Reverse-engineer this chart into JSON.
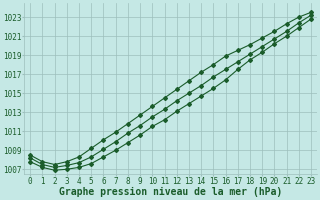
{
  "title": "Graphe pression niveau de la mer (hPa)",
  "background_color": "#c5e8e5",
  "grid_color": "#9dbfbc",
  "line_color": "#1a5c2a",
  "x_labels": [
    "0",
    "1",
    "2",
    "3",
    "4",
    "5",
    "6",
    "7",
    "8",
    "9",
    "10",
    "11",
    "12",
    "13",
    "14",
    "15",
    "16",
    "17",
    "18",
    "19",
    "20",
    "21",
    "22",
    "23"
  ],
  "x_values": [
    0,
    1,
    2,
    3,
    4,
    5,
    6,
    7,
    8,
    9,
    10,
    11,
    12,
    13,
    14,
    15,
    16,
    17,
    18,
    19,
    20,
    21,
    22,
    23
  ],
  "y_main": [
    1008.2,
    1007.5,
    1007.2,
    1007.4,
    1007.7,
    1008.3,
    1009.1,
    1009.9,
    1010.8,
    1011.6,
    1012.5,
    1013.3,
    1014.2,
    1015.0,
    1015.8,
    1016.7,
    1017.5,
    1018.3,
    1019.1,
    1019.9,
    1020.7,
    1021.5,
    1022.4,
    1023.2
  ],
  "y_upper": [
    1008.5,
    1007.8,
    1007.5,
    1007.8,
    1008.3,
    1009.2,
    1010.1,
    1010.9,
    1011.8,
    1012.7,
    1013.6,
    1014.5,
    1015.4,
    1016.3,
    1017.2,
    1018.0,
    1018.9,
    1019.5,
    1020.1,
    1020.8,
    1021.5,
    1022.3,
    1023.0,
    1023.5
  ],
  "y_lower": [
    1007.8,
    1007.2,
    1006.9,
    1007.0,
    1007.2,
    1007.6,
    1008.3,
    1009.0,
    1009.8,
    1010.6,
    1011.5,
    1012.2,
    1013.1,
    1013.9,
    1014.7,
    1015.5,
    1016.4,
    1017.5,
    1018.5,
    1019.3,
    1020.2,
    1021.0,
    1021.9,
    1022.8
  ],
  "ylim": [
    1006.5,
    1024.5
  ],
  "yticks": [
    1007,
    1009,
    1011,
    1013,
    1015,
    1017,
    1019,
    1021,
    1023
  ],
  "title_fontsize": 7,
  "tick_fontsize": 5.5,
  "marker_size": 2.0,
  "line_width": 0.8
}
